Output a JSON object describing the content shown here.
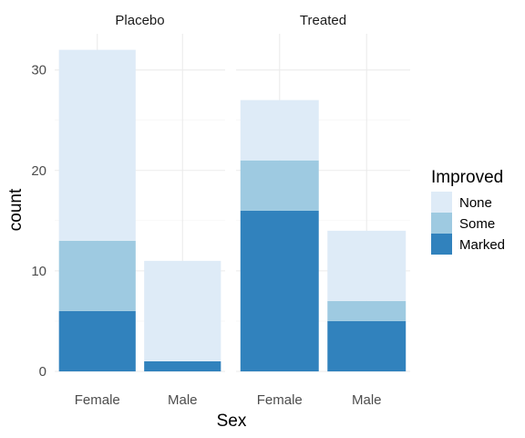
{
  "chart_data": {
    "type": "bar",
    "stacked": true,
    "facet_by": "Treatment",
    "panels": [
      {
        "title": "Placebo",
        "categories": [
          "Female",
          "Male"
        ],
        "series": [
          {
            "name": "None",
            "values": [
              19,
              10
            ]
          },
          {
            "name": "Some",
            "values": [
              7,
              0
            ]
          },
          {
            "name": "Marked",
            "values": [
              6,
              1
            ]
          }
        ]
      },
      {
        "title": "Treated",
        "categories": [
          "Female",
          "Male"
        ],
        "series": [
          {
            "name": "None",
            "values": [
              6,
              7
            ]
          },
          {
            "name": "Some",
            "values": [
              5,
              2
            ]
          },
          {
            "name": "Marked",
            "values": [
              16,
              5
            ]
          }
        ]
      }
    ],
    "xlabel": "Sex",
    "ylabel": "count",
    "ylim": [
      0,
      33.6
    ],
    "yticks": [
      0,
      10,
      20,
      30
    ],
    "legend": {
      "title": "Improved",
      "position": "right",
      "entries": [
        {
          "name": "None",
          "color": "#deebf7"
        },
        {
          "name": "Some",
          "color": "#9ecae1"
        },
        {
          "name": "Marked",
          "color": "#3182bd"
        }
      ]
    },
    "grid": true
  }
}
